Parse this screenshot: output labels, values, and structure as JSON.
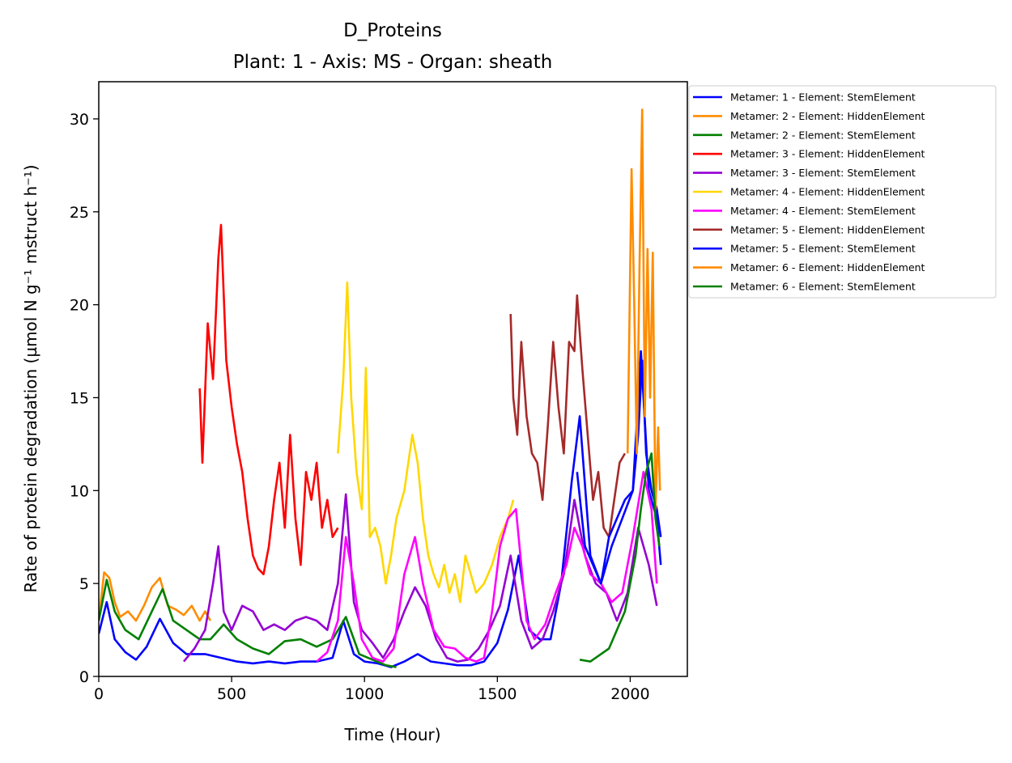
{
  "chart_data": {
    "type": "line",
    "title": "D_Proteins",
    "subtitle": "Plant: 1 - Axis: MS - Organ: sheath",
    "xlabel": "Time (Hour)",
    "ylabel": "Rate of protein degradation (µmol N g⁻¹ mstruct h⁻¹)",
    "xlim": [
      0,
      2215
    ],
    "ylim": [
      0,
      32
    ],
    "xticks": [
      0,
      500,
      1000,
      1500,
      2000
    ],
    "yticks": [
      0,
      5,
      10,
      15,
      20,
      25,
      30
    ],
    "grid": false,
    "legend_position": "outside-top-right",
    "series": [
      {
        "name": "Metamer: 1 - Element: StemElement",
        "color": "#0000ff",
        "x": [
          0,
          30,
          60,
          100,
          140,
          180,
          230,
          280,
          330,
          400,
          460,
          520,
          580,
          640,
          700,
          760,
          820,
          880,
          920,
          960,
          1000,
          1050,
          1100,
          1150,
          1200,
          1250,
          1300,
          1350,
          1400,
          1450,
          1500,
          1540,
          1580,
          1620,
          1660,
          1700,
          1740,
          1780,
          1810,
          1850,
          1890,
          1930,
          1970,
          2010,
          2040,
          2070,
          2100,
          2115
        ],
        "y": [
          2.3,
          4.0,
          2.0,
          1.3,
          0.9,
          1.6,
          3.1,
          1.8,
          1.2,
          1.2,
          1.0,
          0.8,
          0.7,
          0.8,
          0.7,
          0.8,
          0.8,
          1.0,
          3.0,
          1.2,
          0.8,
          0.7,
          0.5,
          0.8,
          1.2,
          0.8,
          0.7,
          0.6,
          0.6,
          0.8,
          1.8,
          3.6,
          6.5,
          2.5,
          2.0,
          2.0,
          5.0,
          10.5,
          14.0,
          6.5,
          5.0,
          7.0,
          8.5,
          10.0,
          17.5,
          10.0,
          8.5,
          6.0
        ]
      },
      {
        "name": "Metamer: 2 - Element: HiddenElement",
        "color": "#ff8c00",
        "x": [
          0,
          20,
          40,
          60,
          80,
          110,
          140,
          170,
          200,
          230,
          260,
          290,
          320,
          350,
          380,
          400,
          420
        ],
        "y": [
          3.0,
          5.6,
          5.3,
          4.0,
          3.2,
          3.5,
          3.0,
          3.8,
          4.8,
          5.3,
          3.8,
          3.6,
          3.3,
          3.8,
          3.0,
          3.5,
          3.0
        ]
      },
      {
        "name": "Metamer: 2 - Element: StemElement",
        "color": "#008000",
        "x": [
          0,
          30,
          60,
          100,
          150,
          200,
          240,
          280,
          330,
          380,
          420,
          470,
          520,
          580,
          640,
          700,
          760,
          820,
          880,
          930,
          980,
          1030,
          1080,
          1120
        ],
        "y": [
          3.0,
          5.2,
          3.5,
          2.5,
          2.0,
          3.5,
          4.7,
          3.0,
          2.5,
          2.0,
          2.0,
          2.8,
          2.0,
          1.5,
          1.2,
          1.9,
          2.0,
          1.6,
          2.0,
          3.2,
          1.2,
          0.9,
          0.6,
          0.5
        ]
      },
      {
        "name": "Metamer: 3 - Element: HiddenElement",
        "color": "#ff0000",
        "x": [
          380,
          390,
          410,
          430,
          450,
          460,
          480,
          500,
          520,
          540,
          560,
          580,
          600,
          620,
          640,
          660,
          680,
          700,
          720,
          740,
          760,
          780,
          800,
          820,
          840,
          860,
          880,
          900
        ],
        "y": [
          15.5,
          11.5,
          19.0,
          16.0,
          22.5,
          24.3,
          17.0,
          14.5,
          12.5,
          11.0,
          8.5,
          6.5,
          5.8,
          5.5,
          7.0,
          9.5,
          11.5,
          8.0,
          13.0,
          8.5,
          6.0,
          11.0,
          9.5,
          11.5,
          8.0,
          9.5,
          7.5,
          8.0
        ]
      },
      {
        "name": "Metamer: 3 - Element: StemElement",
        "color": "#9400d3",
        "x": [
          320,
          360,
          400,
          430,
          450,
          470,
          500,
          540,
          580,
          620,
          660,
          700,
          740,
          780,
          820,
          860,
          900,
          930,
          960,
          990,
          1030,
          1070,
          1110,
          1150,
          1190,
          1230,
          1270,
          1310,
          1350,
          1390,
          1430,
          1470,
          1510,
          1550,
          1590,
          1630,
          1670,
          1710,
          1750,
          1790,
          1830,
          1870,
          1910,
          1950,
          1990,
          2030,
          2070,
          2100
        ],
        "y": [
          0.8,
          1.5,
          2.5,
          5.0,
          7.0,
          3.5,
          2.5,
          3.8,
          3.5,
          2.5,
          2.8,
          2.5,
          3.0,
          3.2,
          3.0,
          2.5,
          5.0,
          9.8,
          4.0,
          2.5,
          1.8,
          1.0,
          2.0,
          3.5,
          4.8,
          3.8,
          2.0,
          1.0,
          0.8,
          0.9,
          1.5,
          2.5,
          3.8,
          6.5,
          3.0,
          1.5,
          2.0,
          3.5,
          5.5,
          9.5,
          6.5,
          5.0,
          4.5,
          3.0,
          4.5,
          8.0,
          6.0,
          3.8
        ]
      },
      {
        "name": "Metamer: 4 - Element: HiddenElement",
        "color": "#ffd700",
        "x": [
          900,
          920,
          935,
          950,
          970,
          990,
          1005,
          1020,
          1040,
          1060,
          1080,
          1100,
          1120,
          1150,
          1180,
          1200,
          1220,
          1240,
          1260,
          1280,
          1300,
          1320,
          1340,
          1360,
          1380,
          1400,
          1420,
          1450,
          1480,
          1510,
          1540,
          1560
        ],
        "y": [
          12.0,
          16.0,
          21.2,
          15.0,
          11.0,
          9.0,
          16.6,
          7.5,
          8.0,
          7.0,
          5.0,
          6.5,
          8.5,
          10.0,
          13.0,
          11.5,
          8.5,
          6.5,
          5.5,
          4.8,
          6.0,
          4.5,
          5.5,
          4.0,
          6.5,
          5.5,
          4.5,
          5.0,
          6.0,
          7.5,
          8.5,
          9.5
        ]
      },
      {
        "name": "Metamer: 4 - Element: StemElement",
        "color": "#ff00ff",
        "x": [
          820,
          860,
          900,
          930,
          960,
          990,
          1030,
          1070,
          1110,
          1150,
          1190,
          1220,
          1260,
          1300,
          1340,
          1380,
          1420,
          1450,
          1480,
          1510,
          1540,
          1570,
          1590,
          1610,
          1640,
          1680,
          1720,
          1760,
          1790,
          1820,
          1850,
          1890,
          1930,
          1970,
          2010,
          2050,
          2080,
          2100
        ],
        "y": [
          0.8,
          1.3,
          3.0,
          7.5,
          5.0,
          2.0,
          1.0,
          0.8,
          1.5,
          5.5,
          7.5,
          5.0,
          2.5,
          1.6,
          1.5,
          1.0,
          0.8,
          1.0,
          3.5,
          7.0,
          8.5,
          9.0,
          6.0,
          3.0,
          2.0,
          2.8,
          4.5,
          6.0,
          8.0,
          7.0,
          5.5,
          5.0,
          4.0,
          4.5,
          7.5,
          11.0,
          9.0,
          5.0
        ]
      },
      {
        "name": "Metamer: 5 - Element: HiddenElement",
        "color": "#a52a2a",
        "x": [
          1550,
          1560,
          1575,
          1590,
          1610,
          1630,
          1650,
          1670,
          1690,
          1710,
          1730,
          1750,
          1770,
          1790,
          1800,
          1820,
          1840,
          1860,
          1880,
          1900,
          1920,
          1940,
          1960,
          1980
        ],
        "y": [
          19.5,
          15.0,
          13.0,
          18.0,
          14.0,
          12.0,
          11.5,
          9.5,
          13.5,
          18.0,
          14.5,
          12.0,
          18.0,
          17.5,
          20.5,
          16.5,
          13.0,
          9.5,
          11.0,
          8.0,
          7.5,
          9.5,
          11.5,
          12.0
        ]
      },
      {
        "name": "Metamer: 5 - Element: StemElement",
        "color": "#0000ff",
        "x": [
          1800,
          1830,
          1860,
          1890,
          1920,
          1950,
          1980,
          2010,
          2030,
          2045,
          2060,
          2080,
          2100,
          2115
        ],
        "y": [
          11.0,
          7.0,
          6.0,
          5.0,
          7.5,
          8.5,
          9.5,
          10.0,
          13.0,
          17.0,
          12.0,
          10.0,
          9.0,
          7.5
        ]
      },
      {
        "name": "Metamer: 6 - Element: HiddenElement",
        "color": "#ff8c00",
        "x": [
          1990,
          2005,
          2015,
          2025,
          2035,
          2045,
          2055,
          2065,
          2075,
          2085,
          2095,
          2105,
          2112
        ],
        "y": [
          12.0,
          27.3,
          20.0,
          12.0,
          22.0,
          30.5,
          14.0,
          23.0,
          15.0,
          22.8,
          9.0,
          13.4,
          10.0
        ]
      },
      {
        "name": "Metamer: 6 - Element: StemElement",
        "color": "#008000",
        "x": [
          1810,
          1850,
          1890,
          1920,
          1950,
          1980,
          2000,
          2020,
          2040,
          2060,
          2080,
          2095,
          2110
        ],
        "y": [
          0.9,
          0.8,
          1.2,
          1.5,
          2.5,
          3.5,
          5.0,
          6.5,
          9.0,
          11.0,
          12.0,
          8.5,
          7.0
        ]
      }
    ]
  }
}
